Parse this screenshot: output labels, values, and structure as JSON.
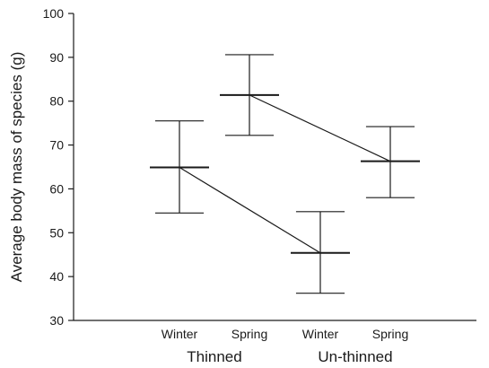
{
  "chart_data": {
    "type": "line",
    "title": "",
    "xlabel": "",
    "ylabel": "Average body mass of species (g)",
    "ylim": [
      30,
      100
    ],
    "yticks": [
      30,
      40,
      50,
      60,
      70,
      80,
      90,
      100
    ],
    "categories": [
      "Winter",
      "Spring",
      "Winter",
      "Spring"
    ],
    "groups": [
      {
        "label": "Thinned",
        "category_indices": [
          0,
          1
        ]
      },
      {
        "label": "Un-thinned",
        "category_indices": [
          2,
          3
        ]
      }
    ],
    "points": [
      {
        "category_index": 0,
        "mean": 64.9,
        "upper": 75.5,
        "lower": 54.5
      },
      {
        "category_index": 1,
        "mean": 81.4,
        "upper": 90.6,
        "lower": 72.2
      },
      {
        "category_index": 2,
        "mean": 45.4,
        "upper": 54.8,
        "lower": 36.2
      },
      {
        "category_index": 3,
        "mean": 66.3,
        "upper": 74.2,
        "lower": 58.0
      }
    ],
    "connections": [
      [
        0,
        2
      ],
      [
        1,
        3
      ]
    ],
    "grid": false,
    "line_color": "#1a1a1a"
  }
}
